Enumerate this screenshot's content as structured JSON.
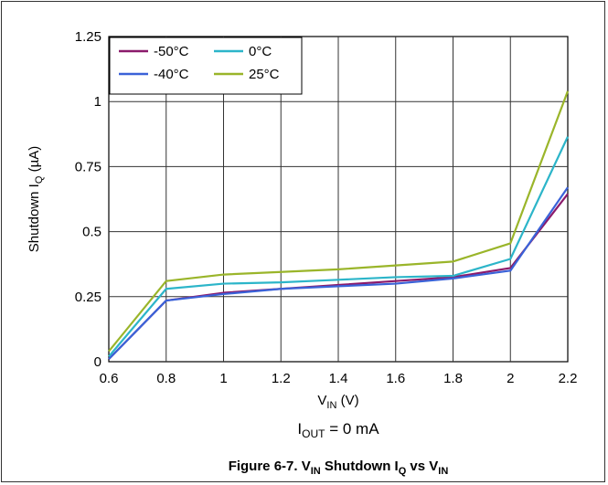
{
  "chart_data": {
    "type": "line",
    "xlabel": {
      "main": "V",
      "sub": "IN",
      "tail": " (V)"
    },
    "ylabel": {
      "main": "Shutdown I",
      "sub": "Q",
      "tail": " (µA)"
    },
    "xlim": [
      0.6,
      2.2
    ],
    "ylim": [
      0,
      1.25
    ],
    "x_ticks": [
      "0.6",
      "0.8",
      "1",
      "1.2",
      "1.4",
      "1.6",
      "1.8",
      "2",
      "2.2"
    ],
    "y_ticks": [
      "0",
      "0.25",
      "0.5",
      "0.75",
      "1",
      "1.25"
    ],
    "grid": true,
    "legend_position": "top-left",
    "x": [
      0.6,
      0.8,
      1.0,
      1.2,
      1.4,
      1.6,
      1.8,
      2.0,
      2.2
    ],
    "series": [
      {
        "name": "-50°C",
        "color": "#8b1a6b",
        "values": [
          0.01,
          0.235,
          0.265,
          0.28,
          0.295,
          0.31,
          0.325,
          0.36,
          0.645
        ]
      },
      {
        "name": "-40°C",
        "color": "#3a62d8",
        "values": [
          0.01,
          0.235,
          0.26,
          0.28,
          0.29,
          0.3,
          0.32,
          0.35,
          0.67
        ]
      },
      {
        "name": "0°C",
        "color": "#2cb5c9",
        "values": [
          0.02,
          0.28,
          0.3,
          0.305,
          0.315,
          0.325,
          0.33,
          0.395,
          0.865
        ]
      },
      {
        "name": "25°C",
        "color": "#9ab52a",
        "values": [
          0.04,
          0.31,
          0.335,
          0.345,
          0.355,
          0.37,
          0.385,
          0.455,
          1.04
        ]
      }
    ]
  },
  "note": {
    "main": "I",
    "sub": "OUT",
    "tail": " = 0 mA"
  },
  "caption": {
    "prefix": "Figure 6-7. V",
    "sub1": "IN",
    "mid1": " Shutdown I",
    "sub2": "Q",
    "mid2": " vs V",
    "sub3": "IN"
  }
}
